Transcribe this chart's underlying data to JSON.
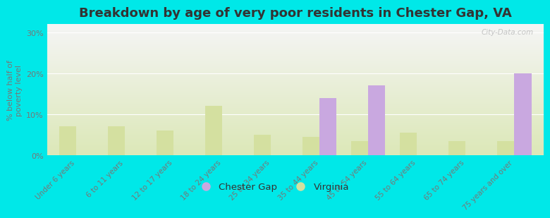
{
  "title": "Breakdown by age of very poor residents in Chester Gap, VA",
  "ylabel": "% below half of\npoverty level",
  "categories": [
    "Under 6 years",
    "6 to 11 years",
    "12 to 17 years",
    "18 to 24 years",
    "25 to 34 years",
    "35 to 44 years",
    "45 to 54 years",
    "55 to 64 years",
    "65 to 74 years",
    "75 years and over"
  ],
  "chester_gap": [
    0,
    0,
    0,
    0,
    0,
    14,
    17,
    0,
    0,
    20
  ],
  "virginia": [
    7,
    7,
    6,
    12,
    5,
    4.5,
    3.5,
    5.5,
    3.5,
    3.5
  ],
  "chester_gap_color": "#c9a8e0",
  "virginia_color": "#d4e0a0",
  "background_color": "#00e8e8",
  "plot_bg_top": "#f5f5f5",
  "plot_bg_bottom": "#dce8b8",
  "ylim": [
    0,
    32
  ],
  "yticks": [
    0,
    10,
    20,
    30
  ],
  "ytick_labels": [
    "0%",
    "10%",
    "20%",
    "30%"
  ],
  "bar_width": 0.35,
  "title_fontsize": 13,
  "watermark": "City-Data.com"
}
